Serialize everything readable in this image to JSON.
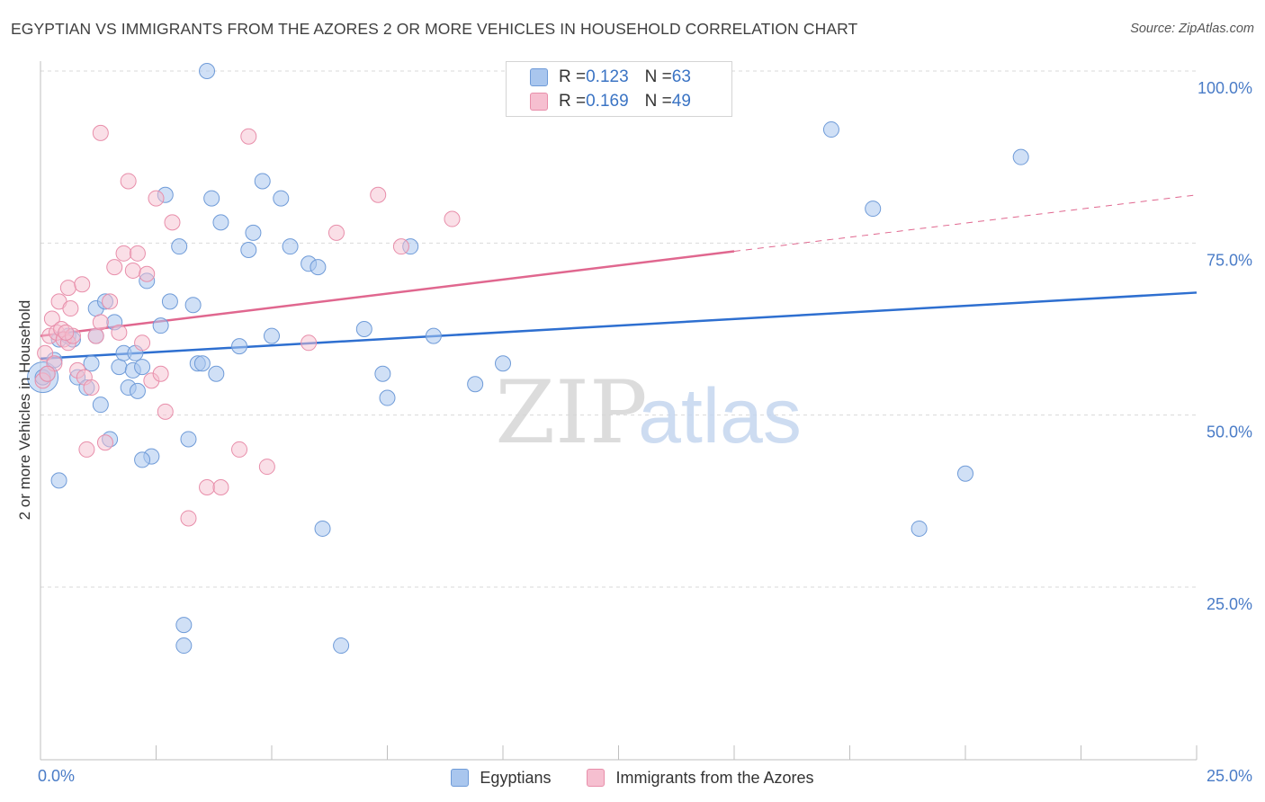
{
  "title": "EGYPTIAN VS IMMIGRANTS FROM THE AZORES 2 OR MORE VEHICLES IN HOUSEHOLD CORRELATION CHART",
  "source": "Source: ZipAtlas.com",
  "watermark": {
    "part1": "ZIP",
    "part2": "atlas"
  },
  "legend_stats": [
    {
      "r_label": "R = ",
      "r_value": "0.123",
      "n_label": "N = ",
      "n_value": "63"
    },
    {
      "r_label": "R = ",
      "r_value": "0.169",
      "n_label": "N = ",
      "n_value": "49"
    }
  ],
  "colors": {
    "blue_fill": "#a9c6ee",
    "blue_stroke": "#6f9bd8",
    "blue_line": "#2e6fd0",
    "pink_fill": "#f6bfd0",
    "pink_stroke": "#e88eaa",
    "pink_line": "#e0678f",
    "tick_label": "#4a7cc7",
    "grid": "#d9d9d9"
  },
  "chart_data": {
    "type": "scatter",
    "title": "EGYPTIAN VS IMMIGRANTS FROM THE AZORES 2 OR MORE VEHICLES IN HOUSEHOLD CORRELATION CHART",
    "xlabel": "",
    "ylabel": "2 or more Vehicles in Household",
    "xlim": [
      0,
      25
    ],
    "ylim": [
      0,
      102
    ],
    "x_tick_labels": [
      {
        "value": 0,
        "label": "0.0%"
      },
      {
        "value": 25,
        "label": "25.0%"
      }
    ],
    "y_tick_labels": [
      {
        "value": 100,
        "label": "100.0%"
      },
      {
        "value": 75,
        "label": "75.0%"
      },
      {
        "value": 50,
        "label": "50.0%"
      },
      {
        "value": 25,
        "label": "25.0%"
      }
    ],
    "legend_position": "bottom-center",
    "series": [
      {
        "name": "Egyptians",
        "color": "blue",
        "points": [
          [
            0.05,
            55.5
          ],
          [
            0.15,
            56.0
          ],
          [
            0.3,
            58.0
          ],
          [
            0.4,
            61.0
          ],
          [
            0.6,
            61.5
          ],
          [
            0.7,
            61.0
          ],
          [
            0.8,
            55.5
          ],
          [
            1.0,
            54.0
          ],
          [
            1.1,
            57.5
          ],
          [
            1.2,
            61.5
          ],
          [
            1.2,
            65.5
          ],
          [
            1.3,
            51.5
          ],
          [
            1.4,
            66.5
          ],
          [
            1.5,
            46.5
          ],
          [
            1.6,
            63.5
          ],
          [
            1.7,
            57.0
          ],
          [
            1.8,
            59.0
          ],
          [
            1.9,
            54.0
          ],
          [
            2.0,
            56.5
          ],
          [
            2.05,
            59.0
          ],
          [
            2.1,
            53.5
          ],
          [
            2.2,
            57.0
          ],
          [
            2.3,
            69.5
          ],
          [
            2.4,
            44.0
          ],
          [
            2.6,
            63.0
          ],
          [
            2.7,
            82.0
          ],
          [
            2.8,
            66.5
          ],
          [
            3.0,
            74.5
          ],
          [
            3.1,
            19.5
          ],
          [
            3.2,
            46.5
          ],
          [
            3.3,
            66.0
          ],
          [
            3.4,
            57.5
          ],
          [
            3.5,
            57.5
          ],
          [
            3.6,
            100.0
          ],
          [
            3.7,
            81.5
          ],
          [
            3.8,
            56.0
          ],
          [
            3.9,
            78.0
          ],
          [
            4.3,
            60.0
          ],
          [
            4.5,
            74.0
          ],
          [
            4.6,
            76.5
          ],
          [
            4.8,
            84.0
          ],
          [
            5.0,
            61.5
          ],
          [
            5.2,
            81.5
          ],
          [
            5.4,
            74.5
          ],
          [
            5.8,
            72.0
          ],
          [
            6.0,
            71.5
          ],
          [
            6.1,
            33.5
          ],
          [
            6.5,
            16.5
          ],
          [
            7.0,
            62.5
          ],
          [
            7.4,
            56.0
          ],
          [
            7.5,
            52.5
          ],
          [
            8.0,
            74.5
          ],
          [
            8.5,
            61.5
          ],
          [
            9.4,
            54.5
          ],
          [
            10.0,
            57.5
          ],
          [
            3.1,
            16.5
          ],
          [
            17.1,
            91.5
          ],
          [
            18.0,
            80.0
          ],
          [
            19.0,
            33.5
          ],
          [
            20.0,
            41.5
          ],
          [
            21.2,
            87.5
          ],
          [
            0.4,
            40.5
          ],
          [
            2.2,
            43.5
          ]
        ]
      },
      {
        "name": "Immigrants from the Azores",
        "color": "pink",
        "points": [
          [
            0.05,
            55.0
          ],
          [
            0.1,
            59.0
          ],
          [
            0.2,
            61.5
          ],
          [
            0.25,
            64.0
          ],
          [
            0.3,
            57.5
          ],
          [
            0.35,
            62.0
          ],
          [
            0.4,
            66.5
          ],
          [
            0.45,
            62.5
          ],
          [
            0.5,
            61.0
          ],
          [
            0.6,
            60.5
          ],
          [
            0.6,
            68.5
          ],
          [
            0.65,
            65.5
          ],
          [
            0.7,
            61.5
          ],
          [
            0.8,
            56.5
          ],
          [
            0.9,
            69.0
          ],
          [
            0.95,
            55.5
          ],
          [
            1.0,
            45.0
          ],
          [
            1.1,
            54.0
          ],
          [
            1.2,
            61.5
          ],
          [
            1.3,
            63.5
          ],
          [
            1.4,
            46.0
          ],
          [
            1.5,
            66.5
          ],
          [
            1.6,
            71.5
          ],
          [
            1.7,
            62.0
          ],
          [
            1.8,
            73.5
          ],
          [
            1.9,
            84.0
          ],
          [
            2.0,
            71.0
          ],
          [
            2.1,
            73.5
          ],
          [
            2.2,
            60.5
          ],
          [
            2.3,
            70.5
          ],
          [
            2.4,
            55.0
          ],
          [
            2.5,
            81.5
          ],
          [
            2.6,
            56.0
          ],
          [
            2.7,
            50.5
          ],
          [
            2.85,
            78.0
          ],
          [
            3.2,
            35.0
          ],
          [
            3.6,
            39.5
          ],
          [
            3.9,
            39.5
          ],
          [
            4.3,
            45.0
          ],
          [
            4.5,
            90.5
          ],
          [
            4.9,
            42.5
          ],
          [
            5.8,
            60.5
          ],
          [
            6.4,
            76.5
          ],
          [
            7.3,
            82.0
          ],
          [
            7.8,
            74.5
          ],
          [
            8.9,
            78.5
          ],
          [
            1.3,
            91.0
          ],
          [
            0.15,
            56.0
          ],
          [
            0.55,
            62.0
          ]
        ]
      }
    ],
    "trend_lines": [
      {
        "series": "Egyptians",
        "x": [
          0,
          25
        ],
        "y": [
          58.2,
          67.8
        ],
        "style": "solid"
      },
      {
        "series": "Immigrants from the Azores",
        "x": [
          0,
          15
        ],
        "y": [
          61.5,
          73.8
        ],
        "style": "solid"
      },
      {
        "series": "Immigrants from the Azores",
        "x": [
          15,
          25
        ],
        "y": [
          73.8,
          82.0
        ],
        "style": "dashed"
      }
    ]
  }
}
